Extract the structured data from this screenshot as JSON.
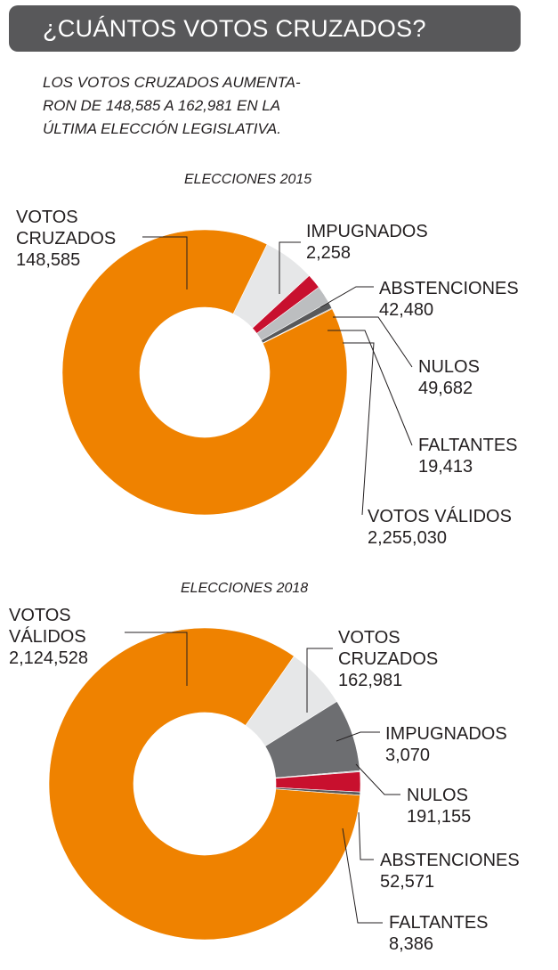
{
  "header": {
    "title": "¿CUÁNTOS VOTOS CRUZADOS?",
    "subtitle": "LOS VOTOS CRUZADOS AUMENTA-\nRON DE 148,585 A 162,981 EN LA\nÚLTIMA ELECCIÓN LEGISLATIVA."
  },
  "chart_data": [
    {
      "type": "pie",
      "title": "ELECCIONES 2015",
      "donut": true,
      "slices": [
        {
          "label": "VOTOS VÁLIDOS",
          "value": 2255030,
          "value_text": "2,255,030",
          "color": "#ef8200"
        },
        {
          "label": "VOTOS CRUZADOS",
          "value": 148585,
          "value_text": "148,585",
          "color": "#e6e7e8"
        },
        {
          "label": "ABSTENCIONES",
          "value": 42480,
          "value_text": "42,480",
          "color": "#c8102e"
        },
        {
          "label": "NULOS",
          "value": 49682,
          "value_text": "49,682",
          "color": "#bcbec0"
        },
        {
          "label": "FALTANTES",
          "value": 19413,
          "value_text": "19,413",
          "color": "#58595b"
        },
        {
          "label": "IMPUGNADOS",
          "value": 2258,
          "value_text": "2,258",
          "color": "#231f20"
        }
      ]
    },
    {
      "type": "pie",
      "title": "ELECCIONES 2018",
      "donut": true,
      "slices": [
        {
          "label": "VOTOS VÁLIDOS",
          "value": 2124528,
          "value_text": "2,124,528",
          "color": "#ef8200"
        },
        {
          "label": "VOTOS CRUZADOS",
          "value": 162981,
          "value_text": "162,981",
          "color": "#e6e7e8"
        },
        {
          "label": "NULOS",
          "value": 191155,
          "value_text": "191,155",
          "color": "#6d6e71"
        },
        {
          "label": "ABSTENCIONES",
          "value": 52571,
          "value_text": "52,571",
          "color": "#c8102e"
        },
        {
          "label": "FALTANTES",
          "value": 8386,
          "value_text": "8,386",
          "color": "#58595b"
        },
        {
          "label": "IMPUGNADOS",
          "value": 3070,
          "value_text": "3,070",
          "color": "#bcbec0"
        }
      ]
    }
  ]
}
